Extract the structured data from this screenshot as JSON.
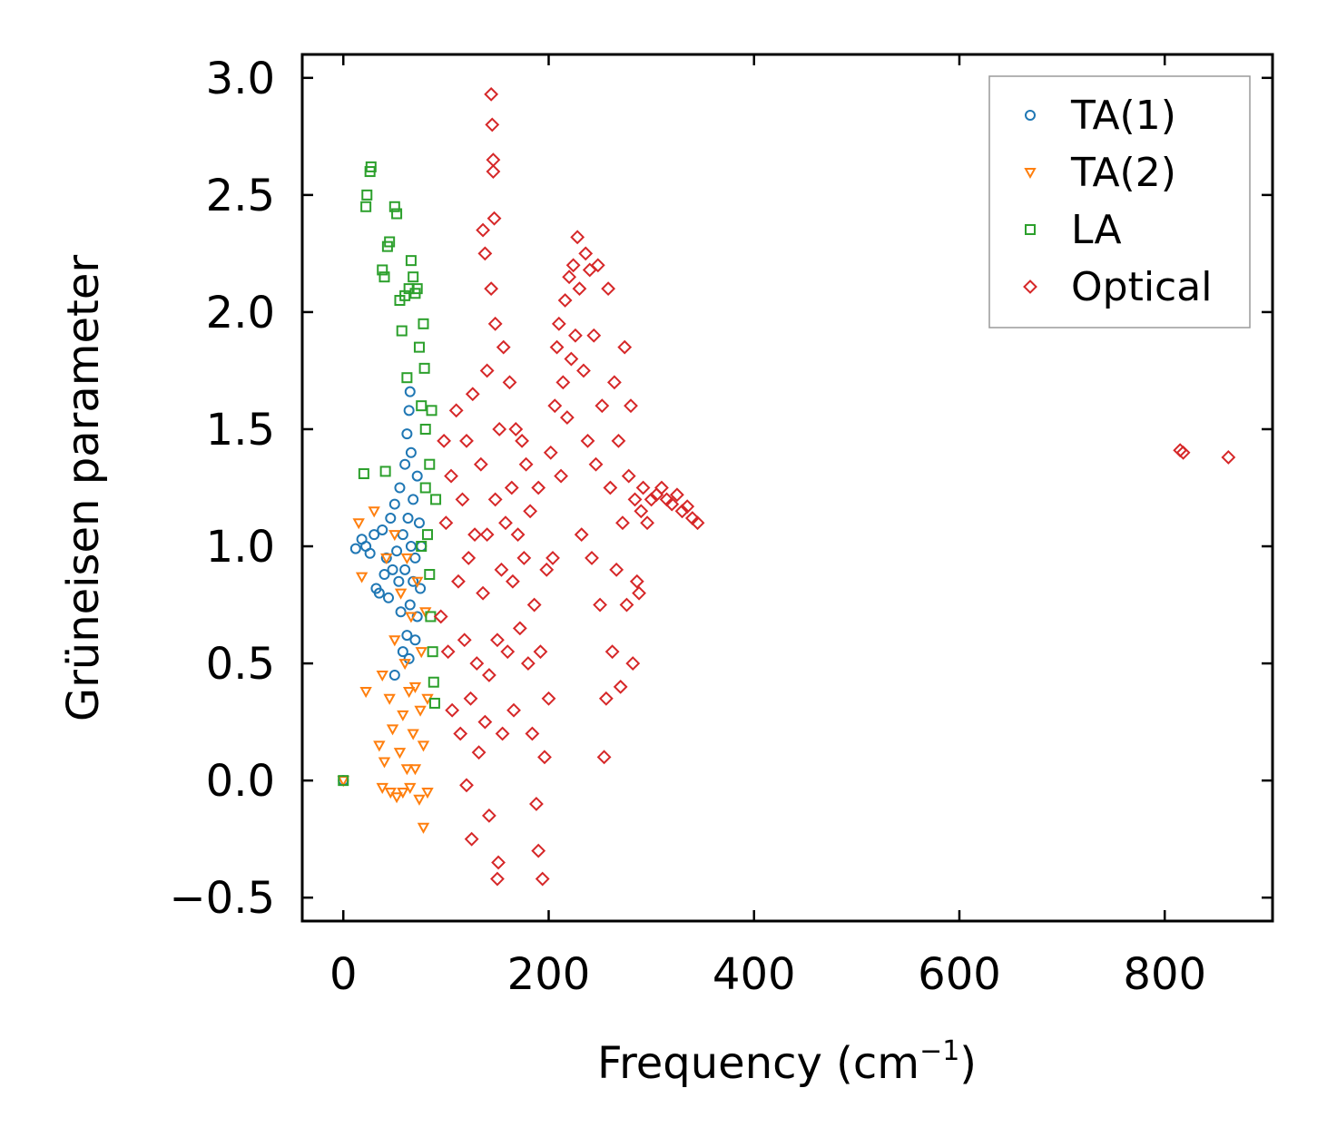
{
  "chart_data": {
    "type": "scatter",
    "title": "",
    "xlabel": "Frequency (cm",
    "xlabel_sup": "−1",
    "xlabel_tail": ")",
    "ylabel": "Grüneisen parameter",
    "xlim": [
      -40,
      905
    ],
    "ylim": [
      -0.6,
      3.1
    ],
    "xticks": [
      0,
      200,
      400,
      600,
      800
    ],
    "xtick_labels": [
      "0",
      "200",
      "400",
      "600",
      "800"
    ],
    "yticks": [
      -0.5,
      0.0,
      0.5,
      1.0,
      1.5,
      2.0,
      2.5,
      3.0
    ],
    "ytick_labels": [
      "−0.5",
      "0.0",
      "0.5",
      "1.0",
      "1.5",
      "2.0",
      "2.5",
      "3.0"
    ],
    "legend_position": "top-right",
    "series": [
      {
        "name": "TA(1)",
        "marker": "circle",
        "color": "#1f77b4",
        "points": [
          [
            0,
            0.0
          ],
          [
            12,
            0.99
          ],
          [
            18,
            1.03
          ],
          [
            22,
            1.0
          ],
          [
            26,
            0.97
          ],
          [
            30,
            1.05
          ],
          [
            32,
            0.82
          ],
          [
            35,
            0.8
          ],
          [
            38,
            1.07
          ],
          [
            40,
            0.88
          ],
          [
            42,
            0.95
          ],
          [
            44,
            0.78
          ],
          [
            46,
            1.12
          ],
          [
            48,
            0.9
          ],
          [
            50,
            0.45
          ],
          [
            50,
            1.18
          ],
          [
            52,
            0.98
          ],
          [
            54,
            0.85
          ],
          [
            55,
            1.25
          ],
          [
            56,
            0.72
          ],
          [
            58,
            1.05
          ],
          [
            58,
            0.55
          ],
          [
            60,
            1.35
          ],
          [
            60,
            0.9
          ],
          [
            62,
            1.48
          ],
          [
            62,
            0.62
          ],
          [
            63,
            1.12
          ],
          [
            64,
            1.58
          ],
          [
            64,
            0.52
          ],
          [
            65,
            0.75
          ],
          [
            65,
            1.66
          ],
          [
            66,
            1.0
          ],
          [
            66,
            1.4
          ],
          [
            68,
            0.85
          ],
          [
            68,
            1.2
          ],
          [
            70,
            0.95
          ],
          [
            70,
            0.6
          ],
          [
            72,
            1.3
          ],
          [
            72,
            0.7
          ],
          [
            74,
            1.1
          ],
          [
            75,
            0.82
          ],
          [
            76,
            1.0
          ]
        ]
      },
      {
        "name": "TA(2)",
        "marker": "triangle-down",
        "color": "#ff7f0e",
        "points": [
          [
            0,
            0.0
          ],
          [
            15,
            1.1
          ],
          [
            18,
            0.87
          ],
          [
            22,
            0.38
          ],
          [
            30,
            1.15
          ],
          [
            35,
            0.15
          ],
          [
            38,
            0.45
          ],
          [
            38,
            -0.03
          ],
          [
            40,
            0.08
          ],
          [
            42,
            0.95
          ],
          [
            45,
            0.35
          ],
          [
            46,
            -0.05
          ],
          [
            48,
            0.22
          ],
          [
            50,
            1.05
          ],
          [
            50,
            0.6
          ],
          [
            52,
            -0.07
          ],
          [
            55,
            0.12
          ],
          [
            56,
            0.8
          ],
          [
            58,
            0.28
          ],
          [
            58,
            -0.05
          ],
          [
            60,
            0.5
          ],
          [
            62,
            0.05
          ],
          [
            62,
            0.95
          ],
          [
            64,
            0.38
          ],
          [
            65,
            -0.03
          ],
          [
            66,
            0.7
          ],
          [
            68,
            0.2
          ],
          [
            70,
            0.4
          ],
          [
            70,
            0.05
          ],
          [
            72,
            0.85
          ],
          [
            74,
            -0.08
          ],
          [
            75,
            0.3
          ],
          [
            76,
            0.55
          ],
          [
            78,
            -0.2
          ],
          [
            78,
            0.15
          ],
          [
            80,
            0.72
          ],
          [
            82,
            0.35
          ],
          [
            82,
            -0.05
          ]
        ]
      },
      {
        "name": "LA",
        "marker": "square",
        "color": "#2ca02c",
        "points": [
          [
            0,
            0.0
          ],
          [
            20,
            1.31
          ],
          [
            22,
            2.45
          ],
          [
            23,
            2.5
          ],
          [
            26,
            2.6
          ],
          [
            27,
            2.62
          ],
          [
            38,
            2.18
          ],
          [
            40,
            2.15
          ],
          [
            41,
            1.32
          ],
          [
            43,
            2.28
          ],
          [
            45,
            2.3
          ],
          [
            50,
            2.45
          ],
          [
            52,
            2.42
          ],
          [
            55,
            2.05
          ],
          [
            57,
            1.92
          ],
          [
            60,
            2.07
          ],
          [
            62,
            1.72
          ],
          [
            64,
            2.1
          ],
          [
            66,
            2.22
          ],
          [
            68,
            2.15
          ],
          [
            70,
            2.08
          ],
          [
            72,
            2.1
          ],
          [
            74,
            1.85
          ],
          [
            76,
            1.6
          ],
          [
            78,
            1.95
          ],
          [
            79,
            1.76
          ],
          [
            80,
            1.5
          ],
          [
            80,
            1.25
          ],
          [
            82,
            1.05
          ],
          [
            84,
            0.88
          ],
          [
            85,
            0.7
          ],
          [
            86,
            1.58
          ],
          [
            87,
            0.55
          ],
          [
            88,
            0.42
          ],
          [
            89,
            0.33
          ],
          [
            90,
            1.2
          ],
          [
            76,
            1.0
          ],
          [
            84,
            1.35
          ]
        ]
      },
      {
        "name": "Optical",
        "marker": "diamond",
        "color": "#d62728",
        "points": [
          [
            95,
            0.7
          ],
          [
            98,
            1.45
          ],
          [
            100,
            1.1
          ],
          [
            102,
            0.55
          ],
          [
            105,
            1.3
          ],
          [
            106,
            0.3
          ],
          [
            110,
            1.58
          ],
          [
            112,
            0.85
          ],
          [
            114,
            0.2
          ],
          [
            116,
            1.2
          ],
          [
            118,
            0.6
          ],
          [
            120,
            -0.02
          ],
          [
            120,
            1.45
          ],
          [
            122,
            0.95
          ],
          [
            124,
            0.35
          ],
          [
            125,
            -0.25
          ],
          [
            126,
            1.65
          ],
          [
            128,
            1.05
          ],
          [
            130,
            0.5
          ],
          [
            132,
            0.12
          ],
          [
            134,
            1.35
          ],
          [
            136,
            2.35
          ],
          [
            136,
            0.8
          ],
          [
            138,
            2.25
          ],
          [
            138,
            0.25
          ],
          [
            140,
            1.75
          ],
          [
            140,
            1.05
          ],
          [
            142,
            0.45
          ],
          [
            142,
            -0.15
          ],
          [
            144,
            2.93
          ],
          [
            144,
            2.1
          ],
          [
            145,
            2.8
          ],
          [
            146,
            2.65
          ],
          [
            146,
            2.6
          ],
          [
            147,
            2.4
          ],
          [
            148,
            1.95
          ],
          [
            148,
            1.2
          ],
          [
            150,
            0.6
          ],
          [
            150,
            -0.42
          ],
          [
            151,
            -0.35
          ],
          [
            152,
            1.5
          ],
          [
            154,
            0.9
          ],
          [
            155,
            0.2
          ],
          [
            156,
            1.85
          ],
          [
            158,
            1.1
          ],
          [
            160,
            0.55
          ],
          [
            162,
            1.7
          ],
          [
            164,
            1.25
          ],
          [
            165,
            0.85
          ],
          [
            166,
            0.3
          ],
          [
            168,
            1.5
          ],
          [
            170,
            1.05
          ],
          [
            172,
            0.65
          ],
          [
            174,
            1.45
          ],
          [
            176,
            0.95
          ],
          [
            178,
            1.35
          ],
          [
            180,
            0.5
          ],
          [
            182,
            1.15
          ],
          [
            184,
            0.2
          ],
          [
            186,
            0.75
          ],
          [
            188,
            -0.1
          ],
          [
            190,
            1.25
          ],
          [
            190,
            -0.3
          ],
          [
            192,
            0.55
          ],
          [
            194,
            -0.42
          ],
          [
            196,
            0.1
          ],
          [
            198,
            0.9
          ],
          [
            200,
            0.35
          ],
          [
            202,
            1.4
          ],
          [
            204,
            0.95
          ],
          [
            206,
            1.6
          ],
          [
            208,
            1.85
          ],
          [
            210,
            1.95
          ],
          [
            212,
            1.3
          ],
          [
            214,
            1.7
          ],
          [
            216,
            2.05
          ],
          [
            218,
            1.55
          ],
          [
            220,
            2.15
          ],
          [
            222,
            1.8
          ],
          [
            224,
            2.2
          ],
          [
            226,
            1.9
          ],
          [
            228,
            2.32
          ],
          [
            230,
            2.1
          ],
          [
            232,
            1.05
          ],
          [
            234,
            1.75
          ],
          [
            236,
            2.25
          ],
          [
            238,
            1.45
          ],
          [
            240,
            2.18
          ],
          [
            242,
            0.95
          ],
          [
            244,
            1.9
          ],
          [
            246,
            1.35
          ],
          [
            248,
            2.2
          ],
          [
            250,
            0.75
          ],
          [
            252,
            1.6
          ],
          [
            254,
            0.1
          ],
          [
            256,
            0.35
          ],
          [
            258,
            2.1
          ],
          [
            260,
            1.25
          ],
          [
            262,
            0.55
          ],
          [
            264,
            1.7
          ],
          [
            266,
            0.9
          ],
          [
            268,
            1.45
          ],
          [
            270,
            0.4
          ],
          [
            272,
            1.1
          ],
          [
            274,
            1.85
          ],
          [
            276,
            0.75
          ],
          [
            278,
            1.3
          ],
          [
            280,
            1.6
          ],
          [
            282,
            0.5
          ],
          [
            284,
            1.2
          ],
          [
            286,
            0.85
          ],
          [
            288,
            0.8
          ],
          [
            290,
            1.15
          ],
          [
            292,
            1.25
          ],
          [
            296,
            1.1
          ],
          [
            300,
            1.2
          ],
          [
            305,
            1.22
          ],
          [
            310,
            1.25
          ],
          [
            315,
            1.2
          ],
          [
            320,
            1.18
          ],
          [
            325,
            1.22
          ],
          [
            330,
            1.15
          ],
          [
            335,
            1.17
          ],
          [
            340,
            1.12
          ],
          [
            345,
            1.1
          ],
          [
            815,
            1.41
          ],
          [
            818,
            1.4
          ],
          [
            862,
            1.38
          ]
        ]
      }
    ]
  }
}
